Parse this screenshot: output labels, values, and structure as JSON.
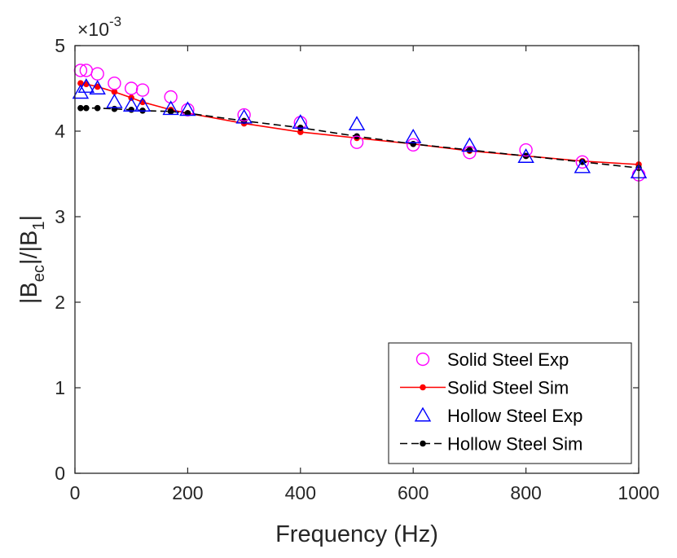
{
  "chart_data": {
    "type": "line",
    "title": "",
    "xlabel": "Frequency (Hz)",
    "ylabel": {
      "base": "|B",
      "sub1": "ec",
      "mid": "|/|B",
      "sub2": "1",
      "end": "|"
    },
    "xlim": [
      0,
      1000
    ],
    "ylim": [
      0,
      5
    ],
    "xticks": [
      0,
      200,
      400,
      600,
      800,
      1000
    ],
    "yticks": [
      0,
      1,
      2,
      3,
      4,
      5
    ],
    "y_multiplier": {
      "prefix": "×10",
      "exponent": "-3"
    },
    "grid": false,
    "legend_position": "bottom-right",
    "series": [
      {
        "name": "Solid Steel Exp",
        "style": "markers",
        "marker": "circle",
        "color": "#ff00ff",
        "x": [
          10,
          20,
          40,
          70,
          100,
          120,
          170,
          200,
          300,
          400,
          500,
          600,
          700,
          800,
          900,
          1000
        ],
        "y": [
          4.71,
          4.71,
          4.67,
          4.56,
          4.5,
          4.48,
          4.4,
          4.25,
          4.19,
          4.1,
          3.87,
          3.84,
          3.75,
          3.78,
          3.64,
          3.49
        ]
      },
      {
        "name": "Solid Steel Sim",
        "style": "line-dot",
        "line": "solid",
        "color": "#ff0000",
        "x": [
          10,
          20,
          40,
          70,
          100,
          120,
          170,
          200,
          300,
          400,
          500,
          600,
          700,
          800,
          900,
          1000
        ],
        "y": [
          4.56,
          4.55,
          4.52,
          4.46,
          4.39,
          4.34,
          4.25,
          4.21,
          4.09,
          3.99,
          3.92,
          3.85,
          3.77,
          3.71,
          3.65,
          3.61
        ]
      },
      {
        "name": "Hollow Steel Exp",
        "style": "markers",
        "marker": "triangle",
        "color": "#0000ff",
        "x": [
          10,
          20,
          40,
          70,
          100,
          120,
          170,
          200,
          300,
          400,
          500,
          600,
          700,
          800,
          900,
          1000
        ],
        "y": [
          4.45,
          4.52,
          4.5,
          4.34,
          4.3,
          4.3,
          4.26,
          4.25,
          4.16,
          4.1,
          4.08,
          3.93,
          3.83,
          3.7,
          3.58,
          3.52
        ]
      },
      {
        "name": "Hollow Steel Sim",
        "style": "line-dot",
        "line": "dashed",
        "color": "#000000",
        "x": [
          10,
          20,
          40,
          70,
          100,
          120,
          170,
          200,
          300,
          400,
          500,
          600,
          700,
          800,
          900,
          1000
        ],
        "y": [
          4.27,
          4.27,
          4.27,
          4.26,
          4.25,
          4.24,
          4.23,
          4.21,
          4.12,
          4.04,
          3.94,
          3.85,
          3.78,
          3.71,
          3.64,
          3.57
        ]
      }
    ]
  }
}
